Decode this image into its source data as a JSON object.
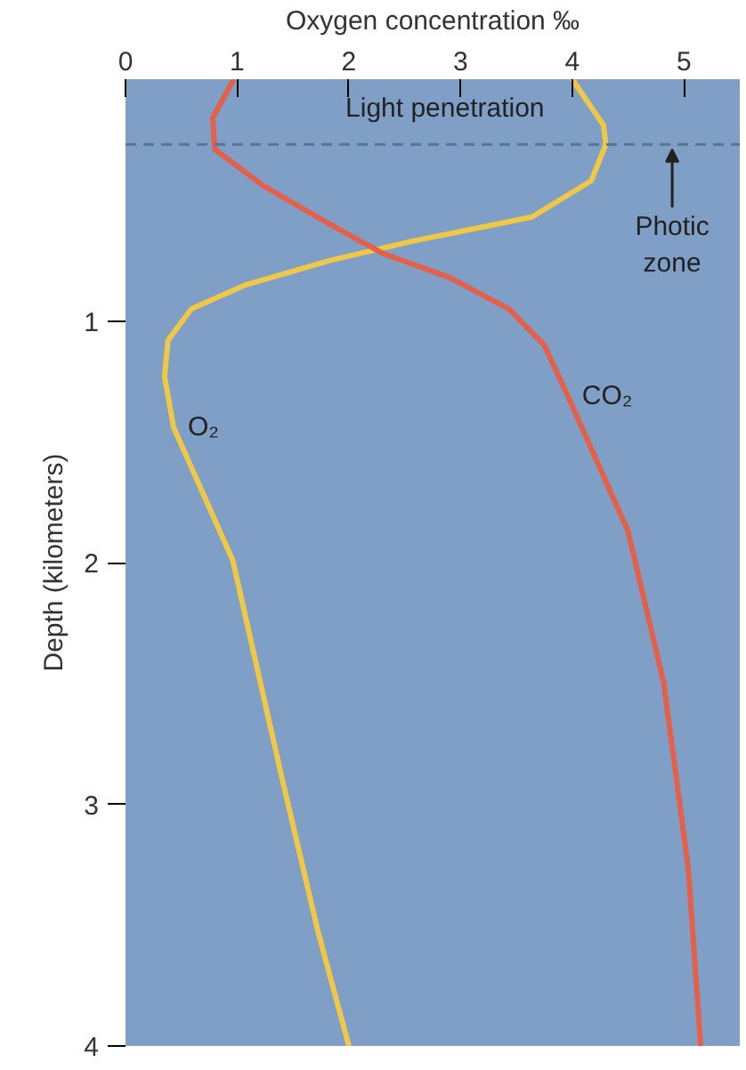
{
  "chart_data": {
    "type": "line",
    "xlabel": "Oxygen concentration ‰",
    "ylabel": "Depth (kilometers)",
    "xlim": [
      0,
      5.5
    ],
    "xticks": [
      0,
      1,
      2,
      3,
      4,
      5
    ],
    "ylim": [
      4,
      0
    ],
    "yticks": [
      1,
      2,
      3,
      4
    ],
    "grid": false,
    "marker": "none",
    "line_style": "solid",
    "series": [
      {
        "name": "O₂",
        "color": "#f0c848",
        "x": [
          4.0,
          4.28,
          4.3,
          4.17,
          3.64,
          2.57,
          1.83,
          1.08,
          0.59,
          0.38,
          0.35,
          0.43,
          0.96,
          1.4,
          1.72,
          2.0
        ],
        "values": [
          0,
          0.19,
          0.27,
          0.42,
          0.57,
          0.67,
          0.75,
          0.85,
          0.95,
          1.08,
          1.23,
          1.44,
          1.99,
          2.89,
          3.52,
          4.0
        ]
      },
      {
        "name": "CO₂",
        "color": "#e4604a",
        "x": [
          0.97,
          0.78,
          0.8,
          1.23,
          1.83,
          2.3,
          2.9,
          3.43,
          3.75,
          3.96,
          4.5,
          4.82,
          5.04,
          5.15
        ],
        "values": [
          0,
          0.16,
          0.29,
          0.44,
          0.6,
          0.72,
          0.82,
          0.95,
          1.1,
          1.31,
          1.87,
          2.5,
          3.27,
          4.0
        ]
      }
    ],
    "ref_lines": [
      {
        "axis": "y",
        "value": 0.27,
        "label": "Photic zone",
        "color": "#5a7490",
        "line_style": "dashed"
      }
    ],
    "annotations": [
      "Light penetration"
    ]
  }
}
